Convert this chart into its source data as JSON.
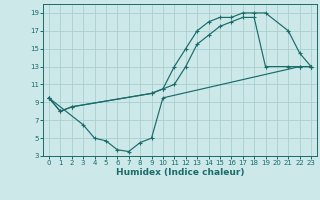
{
  "xlabel": "Humidex (Indice chaleur)",
  "xlim": [
    -0.5,
    23.5
  ],
  "ylim": [
    3,
    20
  ],
  "yticks": [
    3,
    5,
    7,
    9,
    11,
    13,
    15,
    17,
    19
  ],
  "xticks": [
    0,
    1,
    2,
    3,
    4,
    5,
    6,
    7,
    8,
    9,
    10,
    11,
    12,
    13,
    14,
    15,
    16,
    17,
    18,
    19,
    20,
    21,
    22,
    23
  ],
  "bg_color": "#cce8e8",
  "line_color": "#1a6b6b",
  "grid_color": "#aacfcf",
  "line1_x": [
    0,
    1,
    2,
    9,
    10,
    11,
    12,
    13,
    14,
    15,
    16,
    17,
    18,
    19,
    21,
    22,
    23
  ],
  "line1_y": [
    9.5,
    8.0,
    8.5,
    10.0,
    10.5,
    13.0,
    15.0,
    17.0,
    18.0,
    18.5,
    18.5,
    19.0,
    19.0,
    19.0,
    17.0,
    14.5,
    13.0
  ],
  "line2_x": [
    0,
    1,
    2,
    9,
    10,
    11,
    12,
    13,
    14,
    15,
    16,
    17,
    18,
    19,
    21,
    22,
    23
  ],
  "line2_y": [
    9.5,
    8.0,
    8.5,
    10.0,
    10.5,
    11.0,
    13.0,
    15.5,
    16.5,
    17.5,
    18.0,
    18.5,
    18.5,
    13.0,
    13.0,
    13.0,
    13.0
  ],
  "line3_x": [
    0,
    3,
    4,
    5,
    6,
    7,
    8,
    9,
    10,
    22,
    23
  ],
  "line3_y": [
    9.5,
    6.5,
    5.0,
    4.7,
    3.7,
    3.5,
    4.5,
    5.0,
    9.5,
    13.0,
    13.0
  ],
  "tick_fontsize": 5.0,
  "xlabel_fontsize": 6.5,
  "lw": 0.85,
  "ms": 2.8
}
